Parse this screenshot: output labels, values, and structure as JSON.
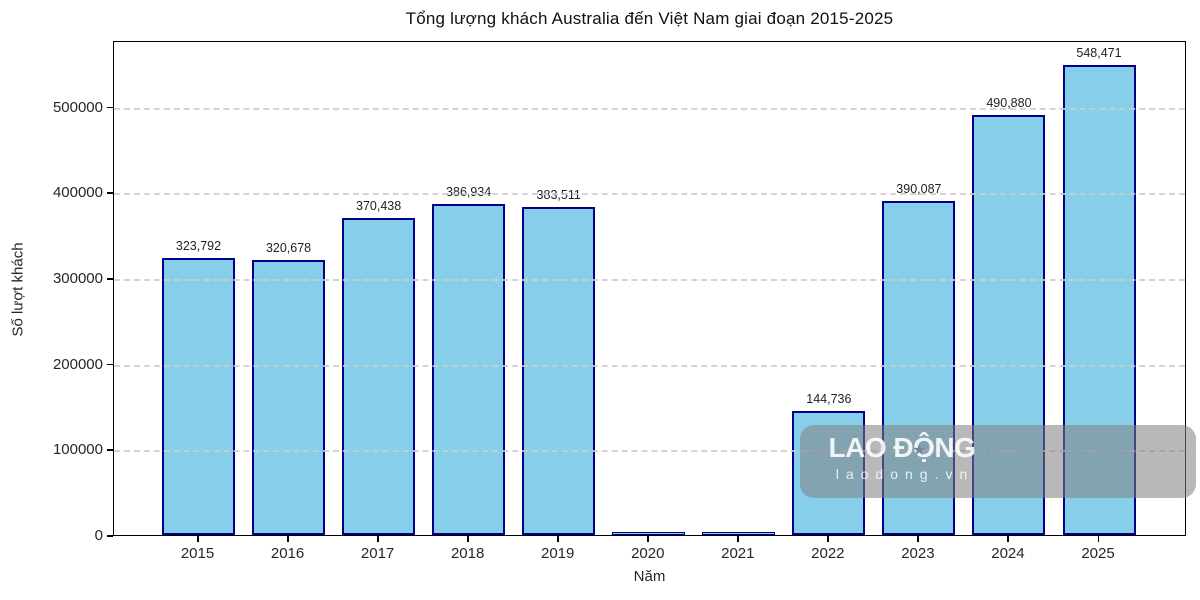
{
  "title": "Tổng lượng khách Australia đến Việt Nam giai đoạn 2015-2025",
  "watermark": {
    "line1": "LAO ĐỘNG",
    "line2": "laodong.vn",
    "star_icon": "★"
  },
  "chart_data": {
    "type": "bar",
    "title": "Tổng lượng khách Australia đến Việt Nam giai đoạn 2015-2025",
    "xlabel": "Năm",
    "ylabel": "Số lượt khách",
    "categories": [
      "2015",
      "2016",
      "2017",
      "2018",
      "2019",
      "2020",
      "2021",
      "2022",
      "2023",
      "2024",
      "2025"
    ],
    "values": [
      323792,
      320678,
      370438,
      386934,
      383511,
      0,
      0,
      144736,
      390087,
      490880,
      548471
    ],
    "data_labels": [
      "323,792",
      "320,678",
      "370,438",
      "386,934",
      "383,511",
      "",
      "",
      "144,736",
      "390,087",
      "490,880",
      "548,471"
    ],
    "yticks": [
      0,
      100000,
      200000,
      300000,
      400000,
      500000
    ],
    "ylim": [
      0,
      578000
    ],
    "grid": "horizontal-dashed",
    "legend": "none",
    "bar_color": "#87CEEB",
    "bar_edge_color": "#00008B",
    "grid_color": "#cdcdcd",
    "text_color": "#262626"
  }
}
